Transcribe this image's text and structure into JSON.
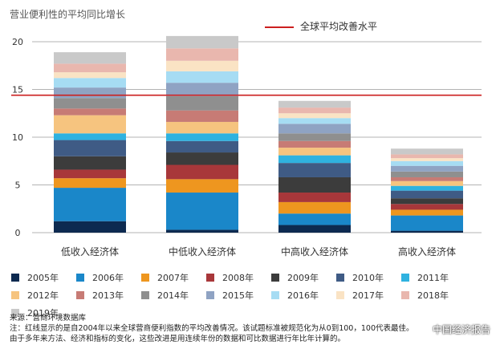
{
  "title": "营业便利性的平均同比增长",
  "reference_label": "全球平均改善水平",
  "source": "来源：营商环境数据库",
  "note_line1": "注：红线显示的是自2004年以来全球营商便利指数的平均改善情况。该试题标准被规范化为从0到100，100代表最佳。",
  "note_line2": "由于多年来方法、经济和指标的变化，这些改进是用连续年份的数据和可比数据进行年比年计算的。",
  "watermark": "中国经济报告",
  "chart_data": {
    "type": "bar",
    "stacked": true,
    "title": "营业便利性的平均同比增长",
    "categories": [
      "低收入经济体",
      "中低收入经济体",
      "中高收入经济体",
      "高收入经济体"
    ],
    "y_ticks": [
      0,
      5,
      10,
      15,
      20
    ],
    "ylim": [
      0,
      20
    ],
    "reference_line": {
      "value": 14.4,
      "label": "全球平均改善水平",
      "color": "#cc1f1f"
    },
    "grid": true,
    "legend_position": "bottom",
    "series": [
      {
        "name": "2005年",
        "color": "#0d2a50",
        "values": [
          1.2,
          0.3,
          0.8,
          0.2
        ]
      },
      {
        "name": "2006年",
        "color": "#1a87c9",
        "values": [
          3.5,
          3.9,
          1.2,
          1.6
        ]
      },
      {
        "name": "2007年",
        "color": "#ee961f",
        "values": [
          1.0,
          1.4,
          1.2,
          0.6
        ]
      },
      {
        "name": "2008年",
        "color": "#a8373a",
        "values": [
          0.9,
          1.5,
          1.0,
          0.6
        ]
      },
      {
        "name": "2009年",
        "color": "#3c3c3c",
        "values": [
          1.4,
          1.3,
          1.6,
          0.6
        ]
      },
      {
        "name": "2010年",
        "color": "#3f5b85",
        "values": [
          1.7,
          1.2,
          1.5,
          0.8
        ]
      },
      {
        "name": "2011年",
        "color": "#2fb2e0",
        "values": [
          0.7,
          0.8,
          0.8,
          0.5
        ]
      },
      {
        "name": "2012年",
        "color": "#f6c47f",
        "values": [
          1.9,
          1.2,
          0.8,
          0.5
        ]
      },
      {
        "name": "2013年",
        "color": "#c77b75",
        "values": [
          0.7,
          1.2,
          0.7,
          0.4
        ]
      },
      {
        "name": "2014年",
        "color": "#8f8f8f",
        "values": [
          1.1,
          1.5,
          0.8,
          0.6
        ]
      },
      {
        "name": "2015年",
        "color": "#8fa3c3",
        "values": [
          1.1,
          1.4,
          1.0,
          0.6
        ]
      },
      {
        "name": "2016年",
        "color": "#a6dcf3",
        "values": [
          1.0,
          1.2,
          0.6,
          0.5
        ]
      },
      {
        "name": "2017年",
        "color": "#fae3c4",
        "values": [
          0.6,
          1.1,
          0.5,
          0.3
        ]
      },
      {
        "name": "2018年",
        "color": "#e9b7ae",
        "values": [
          0.9,
          1.3,
          0.6,
          0.4
        ]
      },
      {
        "name": "2019年",
        "color": "#c9c9c9",
        "values": [
          1.2,
          1.3,
          0.7,
          0.6
        ]
      }
    ]
  }
}
